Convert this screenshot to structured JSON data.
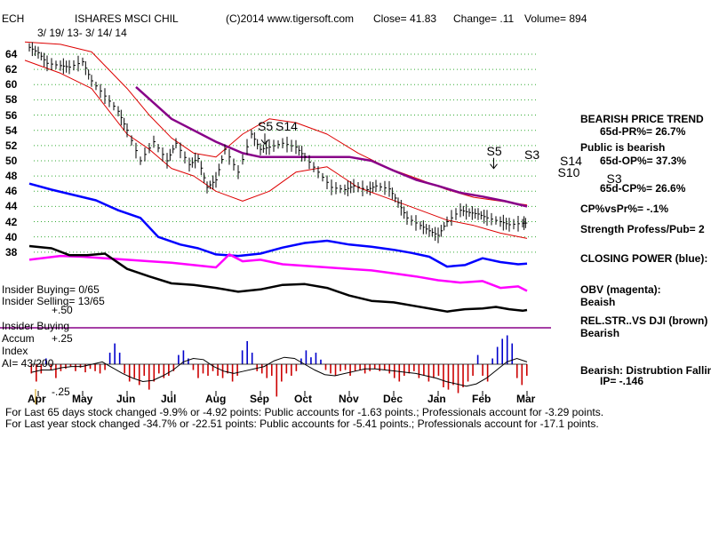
{
  "header": {
    "ticker": "ECH",
    "name": "ISHARES MSCI CHIL",
    "copyright": "(C)2014 www.tigersoft.com",
    "close": "Close=  41.83",
    "change": "Change= .11",
    "volume": "Volume= 894",
    "date_range": "3/ 19/ 13- 3/ 14/ 14"
  },
  "left_panel": {
    "insider_buying": "Insider Buying= 0/65",
    "insider_selling": "Insider Selling= 13/65",
    "plus50": "+.50",
    "insider_label": "Insider Buying",
    "accum": "Accum",
    "index": "Index",
    "ai": "AI= 43/200",
    "plus25": "+.25",
    "minus25": "-.25"
  },
  "right_panel": {
    "trend_title": "BEARISH PRICE TREND",
    "pr": "65d-PR%= 26.7%",
    "public": "Public is bearish",
    "op": "65d-OP%= 37.3%",
    "cp": "65d-CP%= 26.6%",
    "cpvspr": "CP%vsPr%= -.1%",
    "strength": "Strength Profess/Pub= 2",
    "closing_power": "CLOSING POWER (blue):",
    "obv": "OBV (magenta):",
    "obv_val": "Beaish",
    "relstr": "REL.STR..VS DJI (brown)",
    "relstr_val": "Bearish",
    "distribution": "Bearish: Distrubtion Falling",
    "ip": "IP= -.146"
  },
  "footer": {
    "line1": "For Last 65 days stock changed -9.9% or -4.92 points:  Public accounts for -1.63 points.;  Professionals account for -3.29 points.",
    "line2": "For Last year stock changed -34.7% or -22.51 points:  Public accounts for -5.41 points.;  Professionals account for -17.1 points."
  },
  "signals": [
    {
      "label": "S5",
      "x": 5.1,
      "y": 54.4,
      "arrow": true
    },
    {
      "label": "S14",
      "x": 5.5,
      "y": 54.4,
      "arrow": false
    },
    {
      "label": "S5",
      "x": 10.25,
      "y": 51.2,
      "arrow": true
    },
    {
      "label": "S3",
      "x": 11.1,
      "y": 50.7,
      "arrow": false
    },
    {
      "label": "S14",
      "x": 11.9,
      "y": 49.9,
      "arrow": false
    },
    {
      "label": "S10",
      "x": 11.85,
      "y": 48.4,
      "arrow": false
    },
    {
      "label": "S3",
      "x": 12.95,
      "y": 47.6,
      "arrow": false
    }
  ],
  "chart_data": {
    "type": "line",
    "x_unit": "months elapsed from Apr 1 2013",
    "x_ticks": [
      {
        "label": "Apr",
        "x": 0
      },
      {
        "label": "May",
        "x": 1
      },
      {
        "label": "Jun",
        "x": 2
      },
      {
        "label": "Jul",
        "x": 3
      },
      {
        "label": "Aug",
        "x": 4
      },
      {
        "label": "Sep",
        "x": 5
      },
      {
        "label": "Oct",
        "x": 6
      },
      {
        "label": "Nov",
        "x": 7
      },
      {
        "label": "Dec",
        "x": 8
      },
      {
        "label": "Jan",
        "x": 9
      },
      {
        "label": "Feb",
        "x": 10
      },
      {
        "label": "Mar",
        "x": 11
      }
    ],
    "y_ticks": [
      38,
      40,
      42,
      44,
      46,
      48,
      50,
      52,
      54,
      56,
      58,
      60,
      62,
      64
    ],
    "ylim": [
      37,
      65.5
    ],
    "grid": "dotted-horizontal",
    "colors": {
      "price": "#000000",
      "bands": "#dd0000",
      "ma": "#880088",
      "closing_power": "#0000ff",
      "obv": "#ff00ff",
      "relstr": "#000000",
      "accum_pos": "#0000cc",
      "accum_neg": "#cc0000",
      "insider_line": "#880088"
    },
    "series": [
      {
        "name": "Price",
        "x": [
          -0.2,
          0.0,
          0.2,
          0.5,
          0.7,
          1.0,
          1.2,
          1.5,
          1.8,
          2.0,
          2.3,
          2.6,
          2.9,
          3.1,
          3.4,
          3.6,
          3.8,
          4.0,
          4.2,
          4.5,
          4.8,
          5.0,
          5.2,
          5.5,
          5.8,
          6.0,
          6.3,
          6.6,
          6.9,
          7.1,
          7.4,
          7.6,
          7.9,
          8.1,
          8.3,
          8.6,
          8.8,
          9.0,
          9.2,
          9.5,
          9.7,
          9.9,
          10.1,
          10.4,
          10.6,
          10.9,
          11.0
        ],
        "y": [
          64.9,
          64.2,
          62.8,
          62.5,
          62.3,
          63.0,
          60.5,
          58.5,
          56.5,
          54.0,
          50.0,
          52.5,
          50.0,
          52.3,
          49.5,
          50.3,
          46.5,
          47.5,
          51.5,
          48.5,
          53.5,
          51.5,
          51.8,
          52.3,
          51.8,
          50.5,
          48.5,
          46.5,
          46.2,
          46.7,
          46.2,
          46.7,
          46.3,
          44.5,
          42.5,
          41.5,
          40.8,
          40.2,
          42.0,
          43.5,
          43.2,
          43.0,
          42.5,
          42.0,
          41.6,
          41.8,
          41.83
        ]
      },
      {
        "name": "Upper band",
        "x": [
          -0.3,
          0.5,
          1.2,
          2.0,
          2.5,
          3.0,
          3.5,
          4.0,
          4.6,
          5.2,
          5.8,
          6.5,
          7.2,
          7.9,
          8.6,
          9.2,
          9.8,
          10.4,
          11.0
        ],
        "y": [
          65.6,
          65.3,
          64.3,
          59.5,
          56.0,
          53.0,
          51.0,
          50.5,
          53.5,
          55.5,
          55.0,
          53.5,
          51.0,
          49.0,
          47.5,
          46.2,
          45.2,
          44.7,
          44.2
        ]
      },
      {
        "name": "Lower band",
        "x": [
          -0.3,
          0.5,
          1.2,
          2.0,
          2.5,
          3.0,
          3.5,
          4.0,
          4.6,
          5.2,
          5.8,
          6.5,
          7.2,
          7.9,
          8.6,
          9.2,
          9.8,
          10.4,
          11.0
        ],
        "y": [
          63.2,
          61.5,
          59.5,
          53.5,
          51.5,
          49.0,
          48.0,
          46.0,
          44.7,
          46.0,
          48.5,
          49.2,
          46.5,
          45.0,
          43.5,
          42.2,
          41.5,
          40.5,
          39.8
        ]
      },
      {
        "name": "Moving average",
        "x": [
          2.2,
          3.0,
          4.0,
          4.6,
          5.0,
          6.0,
          7.0,
          7.5,
          8.0,
          8.5,
          9.0,
          9.5,
          10.0,
          10.5,
          11.0
        ],
        "y": [
          59.7,
          55.5,
          52.5,
          51.0,
          50.5,
          50.5,
          50.5,
          50.0,
          48.7,
          47.5,
          46.7,
          45.8,
          45.3,
          44.7,
          44.0
        ]
      }
    ],
    "indicators": [
      {
        "name": "Closing Power",
        "x": [
          -0.2,
          0.3,
          0.8,
          1.3,
          1.8,
          2.3,
          2.7,
          3.2,
          3.6,
          4.0,
          4.5,
          5.0,
          5.5,
          6.0,
          6.5,
          7.0,
          7.5,
          8.0,
          8.4,
          8.8,
          9.2,
          9.6,
          10.0,
          10.4,
          10.8,
          11.0
        ],
        "y": [
          47.0,
          46.2,
          45.5,
          44.8,
          43.5,
          42.5,
          40.0,
          39.0,
          38.5,
          37.7,
          37.5,
          37.8,
          38.6,
          39.2,
          39.5,
          39.0,
          38.7,
          38.3,
          37.9,
          37.4,
          36.1,
          36.3,
          37.2,
          36.7,
          36.4,
          36.5
        ]
      },
      {
        "name": "OBV",
        "x": [
          -0.2,
          0.5,
          1.0,
          1.5,
          2.0,
          2.5,
          3.0,
          3.5,
          4.0,
          4.3,
          4.6,
          5.0,
          5.5,
          6.0,
          6.5,
          7.0,
          7.5,
          8.0,
          8.5,
          9.0,
          9.5,
          10.0,
          10.4,
          10.8,
          11.0
        ],
        "y": [
          37.0,
          37.5,
          37.4,
          37.2,
          37.0,
          36.8,
          36.6,
          36.3,
          36.0,
          37.7,
          36.8,
          37.0,
          36.4,
          36.2,
          36.0,
          35.8,
          35.6,
          35.2,
          34.8,
          34.3,
          34.0,
          34.2,
          33.3,
          33.5,
          32.9
        ]
      },
      {
        "name": "Rel Str vs DJI",
        "x": [
          -0.2,
          0.3,
          0.7,
          1.1,
          1.5,
          2.0,
          2.5,
          3.0,
          3.5,
          4.0,
          4.5,
          5.0,
          5.5,
          6.0,
          6.5,
          7.0,
          7.5,
          8.0,
          8.5,
          8.9,
          9.2,
          9.6,
          10.0,
          10.3,
          10.6,
          10.9,
          11.0
        ],
        "y": [
          38.8,
          38.5,
          37.6,
          37.6,
          37.8,
          35.8,
          34.8,
          33.9,
          33.7,
          33.3,
          32.8,
          33.1,
          33.7,
          33.8,
          33.3,
          32.3,
          31.6,
          31.4,
          30.9,
          30.5,
          30.2,
          30.5,
          30.6,
          30.8,
          30.5,
          30.3,
          30.4
        ]
      }
    ],
    "accumulation": {
      "x_start": -0.15,
      "x_end": 11.0,
      "range": [
        -0.25,
        0.25
      ],
      "values": [
        -0.08,
        -0.15,
        -0.08,
        0.05,
        -0.05,
        -0.12,
        -0.06,
        -0.04,
        -0.02,
        -0.06,
        -0.03,
        -0.07,
        -0.04,
        -0.06,
        -0.08,
        -0.05,
        0.1,
        0.18,
        0.1,
        -0.08,
        -0.15,
        -0.12,
        -0.18,
        -0.1,
        -0.22,
        -0.15,
        -0.08,
        -0.12,
        -0.1,
        -0.06,
        0.08,
        0.12,
        0.05,
        -0.05,
        -0.12,
        -0.08,
        -0.1,
        -0.06,
        -0.1,
        -0.12,
        -0.08,
        -0.15,
        -0.1,
        0.12,
        0.2,
        0.1,
        -0.06,
        -0.08,
        -0.12,
        -0.1,
        -0.28,
        -0.15,
        -0.08,
        -0.1,
        -0.06,
        0.05,
        0.12,
        0.06,
        0.1,
        0.04,
        -0.05,
        -0.08,
        -0.1,
        -0.06,
        -0.05,
        -0.1,
        -0.06,
        -0.05,
        -0.08,
        -0.06,
        -0.04,
        -0.06,
        -0.05,
        -0.08,
        -0.12,
        -0.15,
        -0.1,
        -0.08,
        -0.06,
        -0.12,
        -0.1,
        -0.15,
        -0.12,
        -0.1,
        -0.2,
        -0.22,
        -0.18,
        -0.25,
        -0.2,
        -0.15,
        -0.1,
        0.08,
        -0.1,
        -0.15,
        0.05,
        0.15,
        0.22,
        0.25,
        0.18,
        -0.12,
        -0.18,
        -0.1
      ],
      "ma": [
        -0.07,
        -0.05,
        -0.05,
        -0.03,
        -0.02,
        -0.02,
        0.0,
        0.02,
        -0.03,
        -0.08,
        -0.12,
        -0.15,
        -0.14,
        -0.1,
        -0.05,
        0.02,
        0.05,
        0.04,
        -0.02,
        -0.06,
        -0.08,
        -0.06,
        -0.04,
        -0.02,
        0.03,
        0.06,
        0.05,
        0.0,
        -0.05,
        -0.09,
        -0.1,
        -0.08,
        -0.06,
        -0.04,
        -0.04,
        -0.05,
        -0.06,
        -0.07,
        -0.08,
        -0.1,
        -0.12,
        -0.15,
        -0.17,
        -0.19,
        -0.17,
        -0.12,
        -0.05,
        0.02,
        0.05,
        0.02
      ]
    }
  }
}
